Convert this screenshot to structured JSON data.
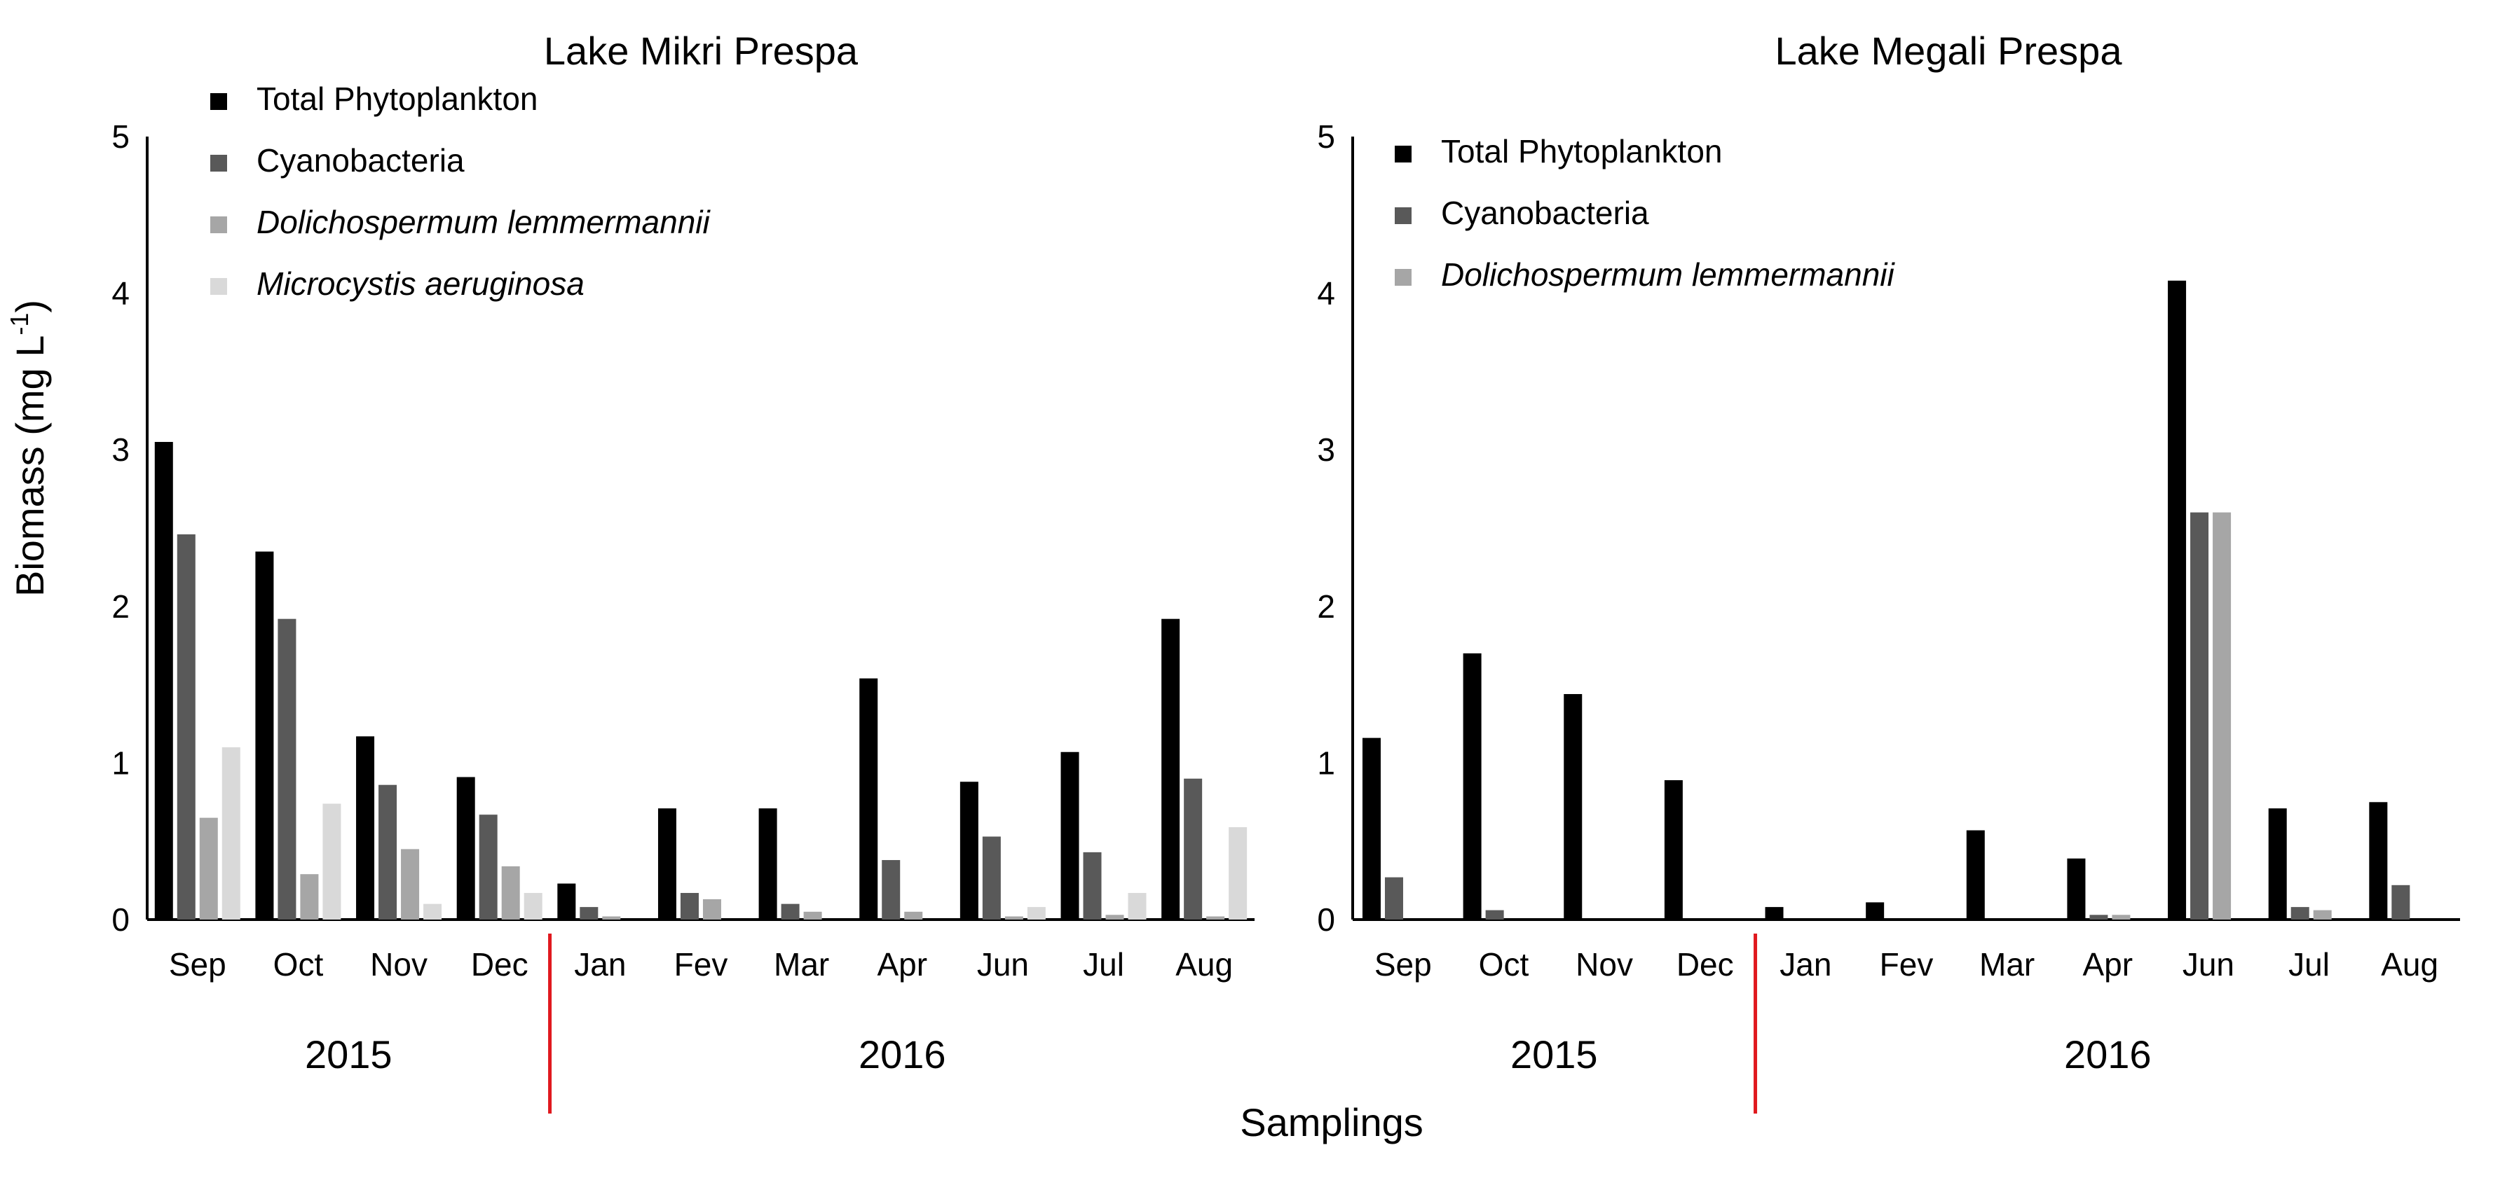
{
  "chart_data": [
    {
      "type": "bar",
      "title": "Lake Mikri Prespa",
      "categories": [
        "Sep",
        "Oct",
        "Nov",
        "Dec",
        "Jan",
        "Fev",
        "Mar",
        "Apr",
        "Jun",
        "Jul",
        "Aug"
      ],
      "years": [
        {
          "label": "2015",
          "from": "Sep",
          "to": "Dec"
        },
        {
          "label": "2016",
          "from": "Jan",
          "to": "Aug"
        }
      ],
      "ylim": [
        0,
        5
      ],
      "yticks": [
        0,
        1,
        2,
        3,
        4,
        5
      ],
      "series": [
        {
          "name": "Total Phytoplankton",
          "italic": false,
          "color": "#000000",
          "values": [
            3.05,
            2.35,
            1.17,
            0.91,
            0.23,
            0.71,
            0.71,
            1.54,
            0.88,
            1.07,
            1.92
          ]
        },
        {
          "name": "Cyanobacteria",
          "italic": false,
          "color": "#595959",
          "values": [
            2.46,
            1.92,
            0.86,
            0.67,
            0.08,
            0.17,
            0.1,
            0.38,
            0.53,
            0.43,
            0.9
          ]
        },
        {
          "name": "Dolichospermum lemmermannii",
          "italic": true,
          "color": "#a6a6a6",
          "values": [
            0.65,
            0.29,
            0.45,
            0.34,
            0.02,
            0.13,
            0.05,
            0.05,
            0.02,
            0.03,
            0.02
          ]
        },
        {
          "name": "Microcystis aeruginosa",
          "italic": true,
          "color": "#d9d9d9",
          "values": [
            1.1,
            0.74,
            0.1,
            0.17,
            0.0,
            0.0,
            0.0,
            0.0,
            0.08,
            0.17,
            0.59
          ]
        }
      ]
    },
    {
      "type": "bar",
      "title": "Lake Megali Prespa",
      "categories": [
        "Sep",
        "Oct",
        "Nov",
        "Dec",
        "Jan",
        "Fev",
        "Mar",
        "Apr",
        "Jun",
        "Jul",
        "Aug"
      ],
      "years": [
        {
          "label": "2015",
          "from": "Sep",
          "to": "Dec"
        },
        {
          "label": "2016",
          "from": "Jan",
          "to": "Aug"
        }
      ],
      "ylim": [
        0,
        5
      ],
      "yticks": [
        0,
        1,
        2,
        3,
        4,
        5
      ],
      "series": [
        {
          "name": "Total Phytoplankton",
          "italic": false,
          "color": "#000000",
          "values": [
            1.16,
            1.7,
            1.44,
            0.89,
            0.08,
            0.11,
            0.57,
            0.39,
            4.08,
            0.71,
            0.75
          ]
        },
        {
          "name": "Cyanobacteria",
          "italic": false,
          "color": "#595959",
          "values": [
            0.27,
            0.06,
            0.0,
            0.0,
            0.0,
            0.0,
            0.0,
            0.03,
            2.6,
            0.08,
            0.22
          ]
        },
        {
          "name": "Dolichospermum lemmermannii",
          "italic": true,
          "color": "#a6a6a6",
          "values": [
            0.0,
            0.0,
            0.0,
            0.0,
            0.0,
            0.0,
            0.0,
            0.03,
            2.6,
            0.06,
            0.0
          ]
        }
      ]
    }
  ],
  "shared": {
    "ylabel_main": "Biomass (mg L",
    "ylabel_sup": "-1",
    "ylabel_end": ")",
    "xlabel": "Samplings",
    "divider_color": "#e0191e",
    "axis_color": "#000000"
  }
}
